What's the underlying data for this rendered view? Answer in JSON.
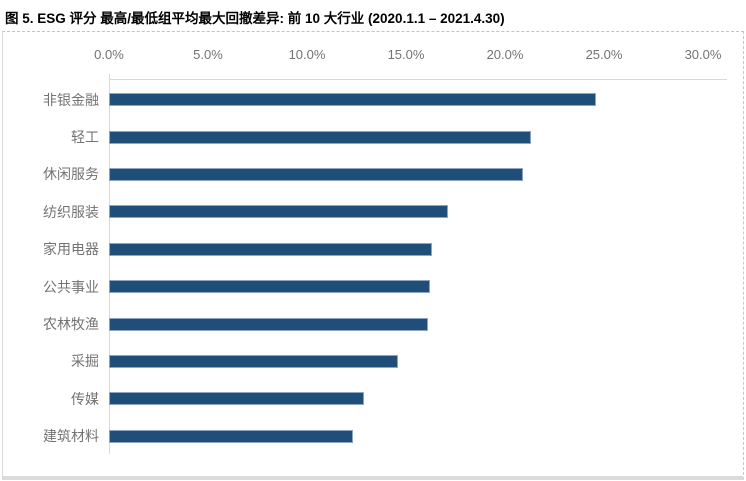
{
  "title": "图 5. ESG 评分 最高/最低组平均最大回撤差异: 前 10 大行业 (2020.1.1 – 2021.4.30)",
  "chart_data": {
    "type": "bar",
    "orientation": "horizontal",
    "title": "ESG 评分 最高/最低组平均最大回撤差异: 前 10 大行业",
    "categories": [
      "非银金融",
      "轻工",
      "休闲服务",
      "纺织服装",
      "家用电器",
      "公共事业",
      "农林牧渔",
      "采掘",
      "传媒",
      "建筑材料"
    ],
    "values": [
      24.6,
      21.3,
      20.9,
      17.1,
      16.3,
      16.2,
      16.1,
      14.6,
      12.9,
      12.3
    ],
    "unit": "%",
    "x_ticks": [
      "0.0%",
      "5.0%",
      "10.0%",
      "15.0%",
      "20.0%",
      "25.0%",
      "30.0%"
    ],
    "xlim": [
      0,
      30
    ],
    "xlabel": "",
    "ylabel": "",
    "legend": "none",
    "grid": "off",
    "axis_position": "top",
    "bar_color": "#1F4E79",
    "bar_border_color": "#8ea4c4",
    "axis_line_color": "#d9d9d9",
    "text_color": "#737373"
  }
}
